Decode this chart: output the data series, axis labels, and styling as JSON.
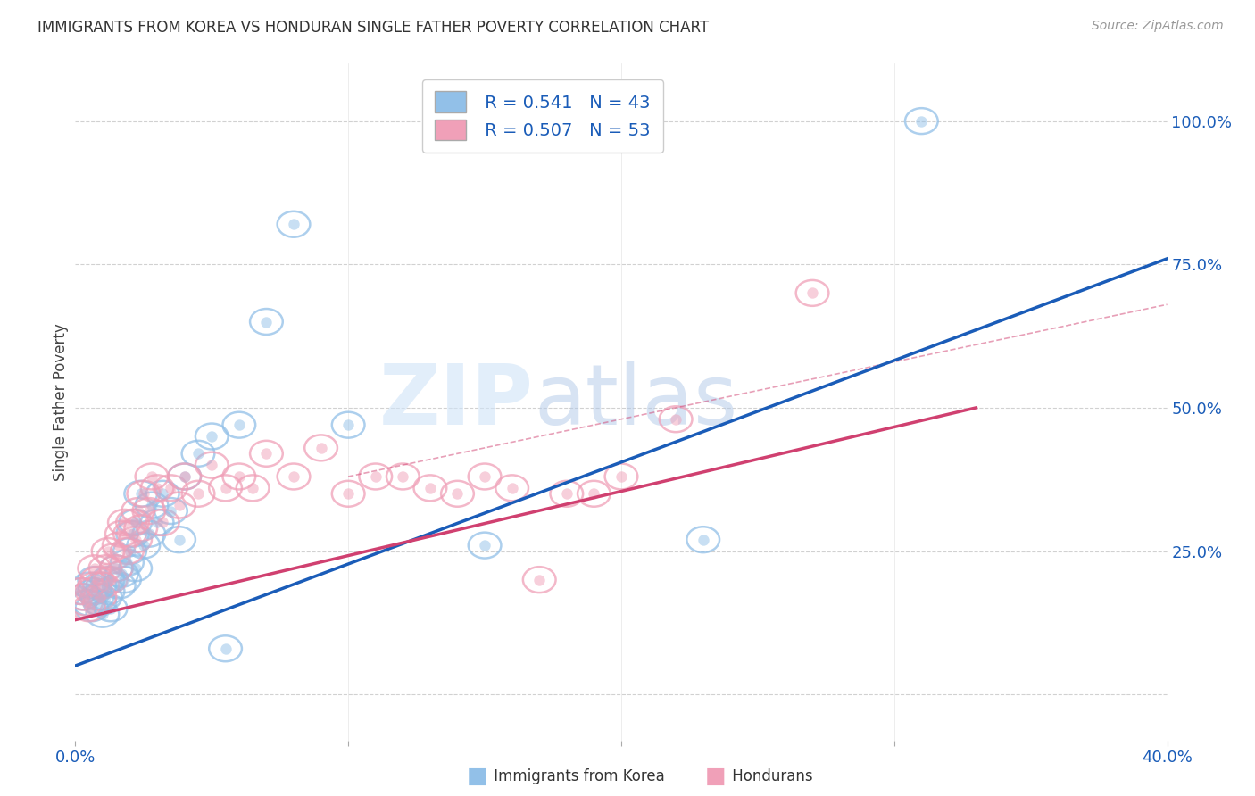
{
  "title": "IMMIGRANTS FROM KOREA VS HONDURAN SINGLE FATHER POVERTY CORRELATION CHART",
  "source": "Source: ZipAtlas.com",
  "ylabel": "Single Father Poverty",
  "yticks": [
    0.0,
    0.25,
    0.5,
    0.75,
    1.0
  ],
  "ytick_labels": [
    "",
    "25.0%",
    "50.0%",
    "75.0%",
    "100.0%"
  ],
  "xlim": [
    0.0,
    0.4
  ],
  "ylim": [
    -0.08,
    1.1
  ],
  "legend_korea_r": "0.541",
  "legend_korea_n": "43",
  "legend_honduran_r": "0.507",
  "legend_honduran_n": "53",
  "color_korea": "#92C0E8",
  "color_honduran": "#F0A0B8",
  "color_korea_line": "#1A5CB8",
  "color_honduran_line": "#D04070",
  "watermark_zip": "ZIP",
  "watermark_atlas": "atlas",
  "korea_x": [
    0.002,
    0.003,
    0.005,
    0.005,
    0.006,
    0.007,
    0.007,
    0.008,
    0.009,
    0.009,
    0.01,
    0.011,
    0.012,
    0.012,
    0.013,
    0.015,
    0.016,
    0.017,
    0.018,
    0.019,
    0.02,
    0.021,
    0.022,
    0.022,
    0.024,
    0.025,
    0.027,
    0.028,
    0.03,
    0.032,
    0.035,
    0.038,
    0.04,
    0.045,
    0.05,
    0.055,
    0.06,
    0.07,
    0.08,
    0.1,
    0.15,
    0.23,
    0.31
  ],
  "korea_y": [
    0.18,
    0.17,
    0.16,
    0.19,
    0.15,
    0.18,
    0.2,
    0.17,
    0.16,
    0.19,
    0.14,
    0.17,
    0.18,
    0.2,
    0.15,
    0.22,
    0.19,
    0.21,
    0.2,
    0.23,
    0.25,
    0.28,
    0.22,
    0.3,
    0.35,
    0.26,
    0.28,
    0.33,
    0.3,
    0.35,
    0.32,
    0.27,
    0.38,
    0.42,
    0.45,
    0.08,
    0.47,
    0.65,
    0.82,
    0.47,
    0.26,
    0.27,
    1.0
  ],
  "honduran_x": [
    0.002,
    0.003,
    0.004,
    0.005,
    0.006,
    0.007,
    0.007,
    0.008,
    0.009,
    0.01,
    0.011,
    0.012,
    0.013,
    0.014,
    0.015,
    0.016,
    0.017,
    0.018,
    0.019,
    0.02,
    0.021,
    0.022,
    0.023,
    0.024,
    0.025,
    0.027,
    0.028,
    0.03,
    0.032,
    0.035,
    0.038,
    0.04,
    0.045,
    0.05,
    0.055,
    0.06,
    0.065,
    0.07,
    0.08,
    0.09,
    0.1,
    0.11,
    0.12,
    0.13,
    0.14,
    0.15,
    0.16,
    0.17,
    0.18,
    0.19,
    0.2,
    0.22,
    0.27
  ],
  "honduran_y": [
    0.18,
    0.17,
    0.16,
    0.15,
    0.18,
    0.19,
    0.22,
    0.2,
    0.17,
    0.19,
    0.22,
    0.25,
    0.2,
    0.24,
    0.22,
    0.26,
    0.28,
    0.3,
    0.25,
    0.28,
    0.3,
    0.27,
    0.32,
    0.29,
    0.35,
    0.32,
    0.38,
    0.36,
    0.3,
    0.36,
    0.33,
    0.38,
    0.35,
    0.4,
    0.36,
    0.38,
    0.36,
    0.42,
    0.38,
    0.43,
    0.35,
    0.38,
    0.38,
    0.36,
    0.35,
    0.38,
    0.36,
    0.2,
    0.35,
    0.35,
    0.38,
    0.48,
    0.7
  ],
  "korea_line_x0": 0.0,
  "korea_line_y0": 0.05,
  "korea_line_x1": 0.4,
  "korea_line_y1": 0.76,
  "honduran_line_x0": 0.0,
  "honduran_line_y0": 0.13,
  "honduran_line_x1": 0.33,
  "honduran_line_y1": 0.5,
  "background_color": "#FFFFFF",
  "grid_color": "#CCCCCC"
}
